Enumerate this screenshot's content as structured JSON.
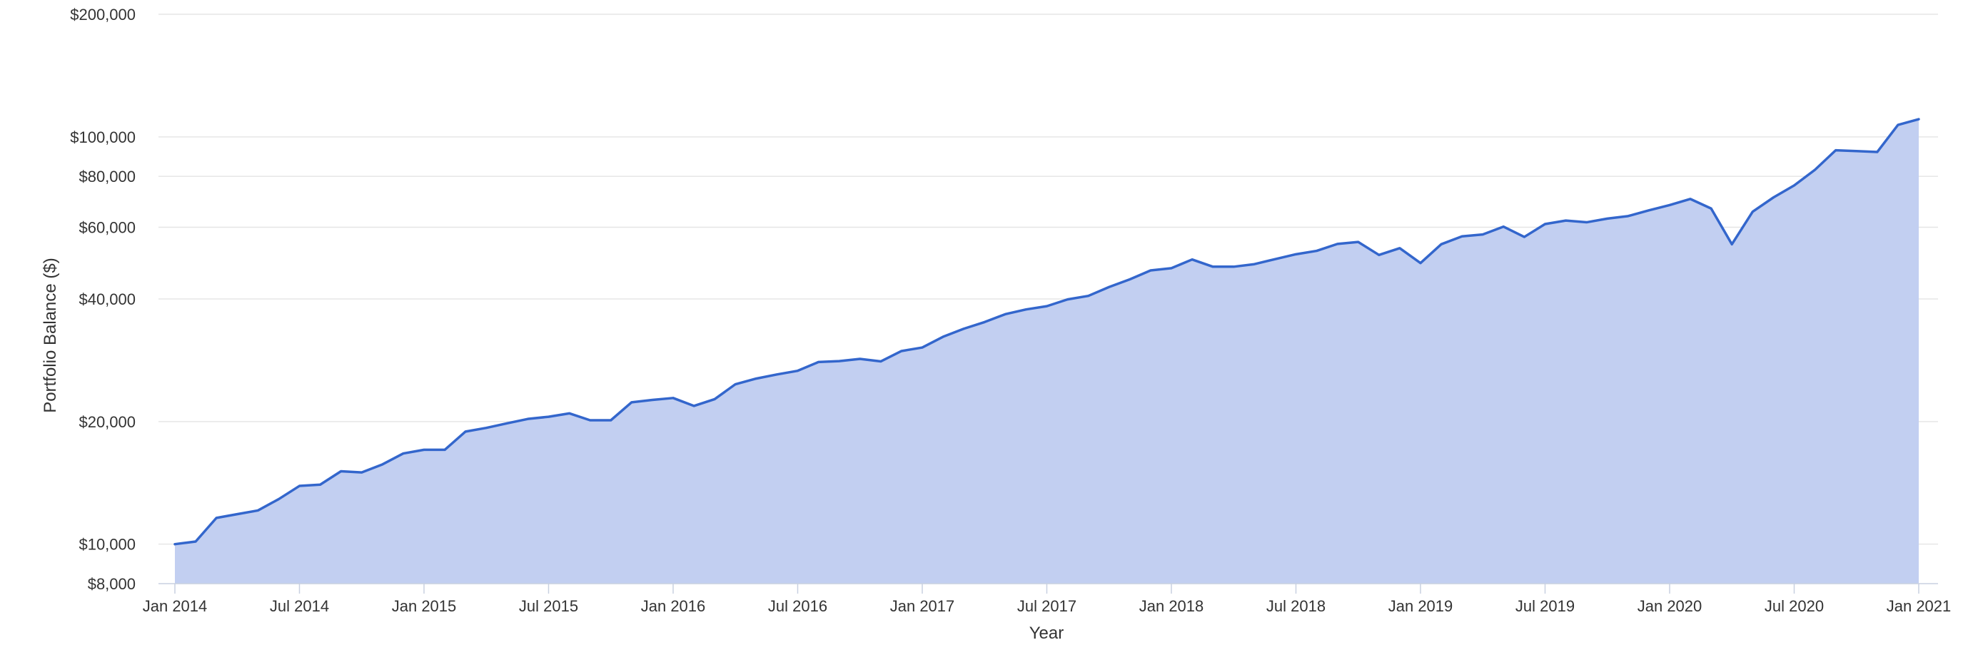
{
  "chart_data": {
    "type": "area",
    "xlabel": "Year",
    "ylabel": "Portfolio Balance ($)",
    "y_scale": "log",
    "ylim": [
      8000,
      200000
    ],
    "grid": true,
    "colors": {
      "line": "#3366cc",
      "fill": "#c2cff1",
      "grid": "#e6e6e6",
      "axis": "#c8d0e0"
    },
    "y_ticks": [
      {
        "value": 8000,
        "label": "$8,000"
      },
      {
        "value": 10000,
        "label": "$10,000"
      },
      {
        "value": 20000,
        "label": "$20,000"
      },
      {
        "value": 40000,
        "label": "$40,000"
      },
      {
        "value": 60000,
        "label": "$60,000"
      },
      {
        "value": 80000,
        "label": "$80,000"
      },
      {
        "value": 100000,
        "label": "$100,000"
      },
      {
        "value": 200000,
        "label": "$200,000"
      }
    ],
    "x_ticks": [
      {
        "date": "2014-01",
        "label": "Jan 2014"
      },
      {
        "date": "2014-07",
        "label": "Jul 2014"
      },
      {
        "date": "2015-01",
        "label": "Jan 2015"
      },
      {
        "date": "2015-07",
        "label": "Jul 2015"
      },
      {
        "date": "2016-01",
        "label": "Jan 2016"
      },
      {
        "date": "2016-07",
        "label": "Jul 2016"
      },
      {
        "date": "2017-01",
        "label": "Jan 2017"
      },
      {
        "date": "2017-07",
        "label": "Jul 2017"
      },
      {
        "date": "2018-01",
        "label": "Jan 2018"
      },
      {
        "date": "2018-07",
        "label": "Jul 2018"
      },
      {
        "date": "2019-01",
        "label": "Jan 2019"
      },
      {
        "date": "2019-07",
        "label": "Jul 2019"
      },
      {
        "date": "2020-01",
        "label": "Jan 2020"
      },
      {
        "date": "2020-07",
        "label": "Jul 2020"
      },
      {
        "date": "2021-01",
        "label": "Jan 2021"
      }
    ],
    "x": [
      "2014-01",
      "2014-02",
      "2014-03",
      "2014-04",
      "2014-05",
      "2014-06",
      "2014-07",
      "2014-08",
      "2014-09",
      "2014-10",
      "2014-11",
      "2014-12",
      "2015-01",
      "2015-02",
      "2015-03",
      "2015-04",
      "2015-05",
      "2015-06",
      "2015-07",
      "2015-08",
      "2015-09",
      "2015-10",
      "2015-11",
      "2015-12",
      "2016-01",
      "2016-02",
      "2016-03",
      "2016-04",
      "2016-05",
      "2016-06",
      "2016-07",
      "2016-08",
      "2016-09",
      "2016-10",
      "2016-11",
      "2016-12",
      "2017-01",
      "2017-02",
      "2017-03",
      "2017-04",
      "2017-05",
      "2017-06",
      "2017-07",
      "2017-08",
      "2017-09",
      "2017-10",
      "2017-11",
      "2017-12",
      "2018-01",
      "2018-02",
      "2018-03",
      "2018-04",
      "2018-05",
      "2018-06",
      "2018-07",
      "2018-08",
      "2018-09",
      "2018-10",
      "2018-11",
      "2018-12",
      "2019-01",
      "2019-02",
      "2019-03",
      "2019-04",
      "2019-05",
      "2019-06",
      "2019-07",
      "2019-08",
      "2019-09",
      "2019-10",
      "2019-11",
      "2019-12",
      "2020-01",
      "2020-02",
      "2020-03",
      "2020-04",
      "2020-05",
      "2020-06",
      "2020-07",
      "2020-08",
      "2020-09",
      "2020-10",
      "2020-11",
      "2020-12",
      "2021-01"
    ],
    "values": [
      10000,
      10150,
      11600,
      11850,
      12100,
      12900,
      13900,
      14000,
      15100,
      15000,
      15700,
      16700,
      17050,
      17050,
      18900,
      19300,
      19800,
      20300,
      20550,
      20950,
      20150,
      20150,
      22300,
      22600,
      22850,
      21850,
      22700,
      24700,
      25500,
      26100,
      26650,
      28000,
      28150,
      28500,
      28100,
      29800,
      30400,
      32300,
      33800,
      35100,
      36700,
      37700,
      38400,
      39900,
      40700,
      42800,
      44700,
      47000,
      47600,
      50000,
      48000,
      48000,
      48700,
      50100,
      51500,
      52500,
      54600,
      55200,
      51300,
      53300,
      49000,
      54500,
      57000,
      57600,
      60200,
      56800,
      61100,
      62300,
      61700,
      63000,
      63900,
      66000,
      68000,
      70400,
      66700,
      54500,
      65500,
      71000,
      76000,
      83000,
      92700,
      92300,
      91800,
      107000,
      110500
    ]
  }
}
